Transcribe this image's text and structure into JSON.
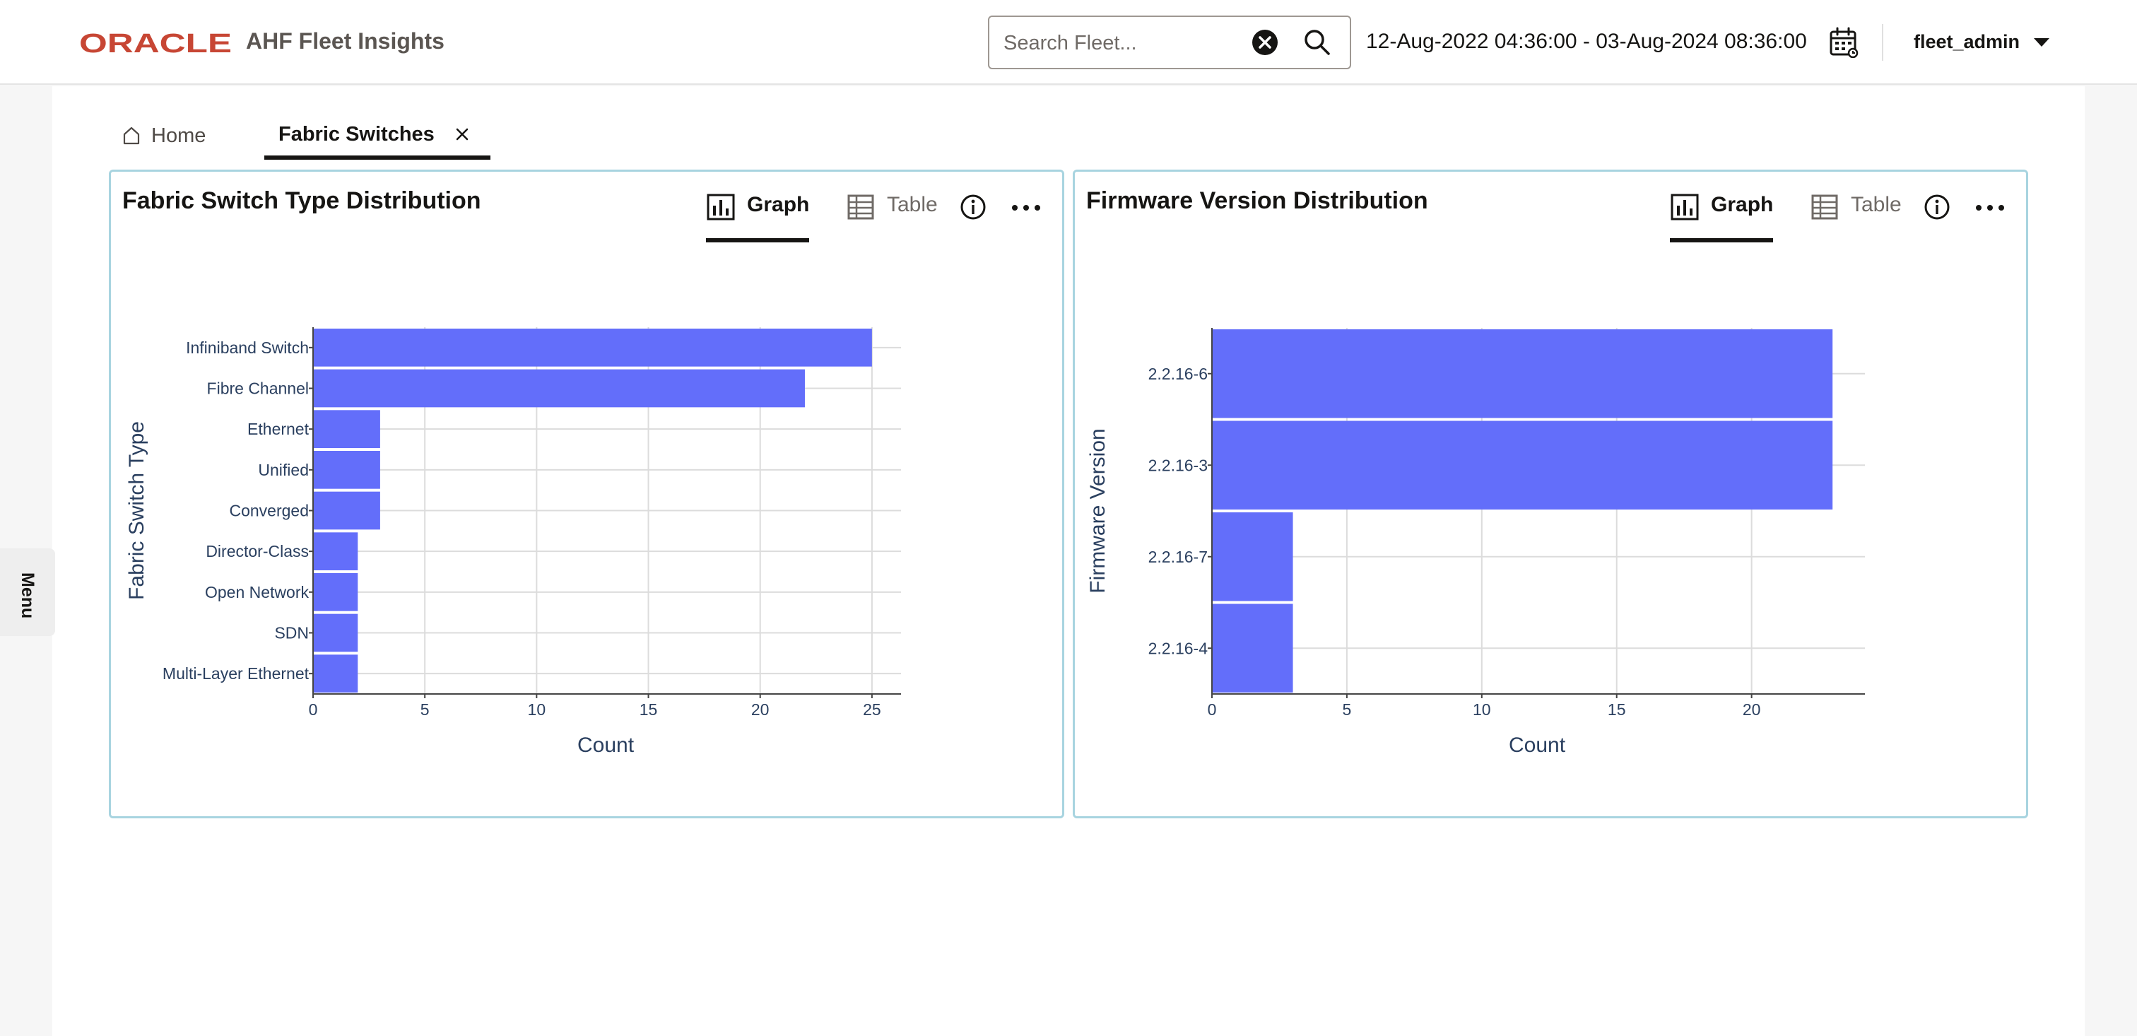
{
  "header": {
    "brand": "ORACLE",
    "app_title": "AHF Fleet Insights",
    "search_placeholder": "Search Fleet...",
    "date_range": "12-Aug-2022 04:36:00 - 03-Aug-2024 08:36:00",
    "user": "fleet_admin"
  },
  "menu_label": "Menu",
  "tabs": [
    {
      "label": "Home"
    },
    {
      "label": "Fabric Switches"
    }
  ],
  "colors": {
    "bar": "#636efa",
    "accent_border": "#a8d4e0",
    "brand_red": "#c74634"
  },
  "panels": [
    {
      "title": "Fabric Switch Type Distribution",
      "graph_label": "Graph",
      "table_label": "Table"
    },
    {
      "title": "Firmware Version Distribution",
      "graph_label": "Graph",
      "table_label": "Table"
    }
  ],
  "chart_data": [
    {
      "type": "bar",
      "orientation": "horizontal",
      "categories": [
        "Infiniband Switch",
        "Fibre Channel",
        "Ethernet",
        "Unified",
        "Converged",
        "Director-Class",
        "Open Network",
        "SDN",
        "Multi-Layer Ethernet"
      ],
      "values": [
        25,
        22,
        3,
        3,
        3,
        2,
        2,
        2,
        2
      ],
      "xlabel": "Count",
      "ylabel": "Fabric Switch Type",
      "xticks": [
        0,
        5,
        10,
        15,
        20,
        25
      ],
      "xlim": [
        0,
        26.3
      ],
      "grid": true
    },
    {
      "type": "bar",
      "orientation": "horizontal",
      "categories": [
        "2.2.16-6",
        "2.2.16-3",
        "2.2.16-7",
        "2.2.16-4"
      ],
      "values": [
        23,
        23,
        3,
        3
      ],
      "xlabel": "Count",
      "ylabel": "Firmware Version",
      "xticks": [
        0,
        5,
        10,
        15,
        20
      ],
      "xlim": [
        0,
        24.2
      ],
      "grid": true
    }
  ]
}
